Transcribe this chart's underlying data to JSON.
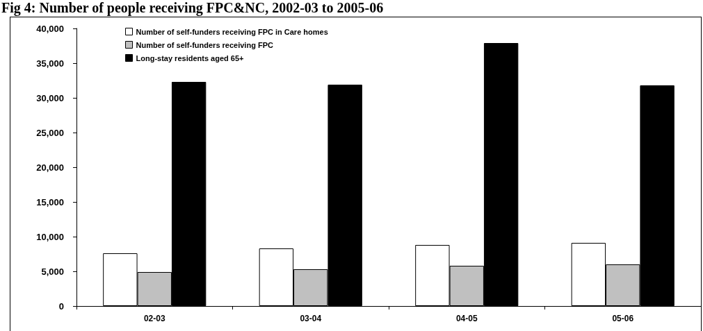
{
  "chart_data": {
    "type": "bar",
    "title": "Fig 4: Number of people receiving FPC&NC, 2002-03 to 2005-06",
    "categories": [
      "02-03",
      "03-04",
      "04-05",
      "05-06"
    ],
    "series": [
      {
        "name": "Number of self-funders receiving FPC in Care homes",
        "color": "#ffffff",
        "values": [
          7600,
          8300,
          8800,
          9100
        ]
      },
      {
        "name": "Number of self-funders receiving FPC",
        "color": "#c0c0c0",
        "values": [
          4900,
          5300,
          5800,
          6000
        ]
      },
      {
        "name": "Long-stay residents aged 65+",
        "color": "#000000",
        "values": [
          32300,
          31900,
          37900,
          31800
        ]
      }
    ],
    "ylim": [
      0,
      40000
    ],
    "yticks": [
      0,
      {
        "value": 5000,
        "label": "5,000"
      },
      {
        "value": 10000,
        "label": "10,000"
      },
      {
        "value": 15000,
        "label": "15,000"
      },
      {
        "value": 20000,
        "label": "20,000"
      },
      {
        "value": 25000,
        "label": "25,000"
      },
      {
        "value": 30000,
        "label": "30,000"
      },
      {
        "value": 35000,
        "label": "35,000"
      },
      {
        "value": 40000,
        "label": "40,000"
      }
    ],
    "grid": false,
    "legend": "top left"
  }
}
